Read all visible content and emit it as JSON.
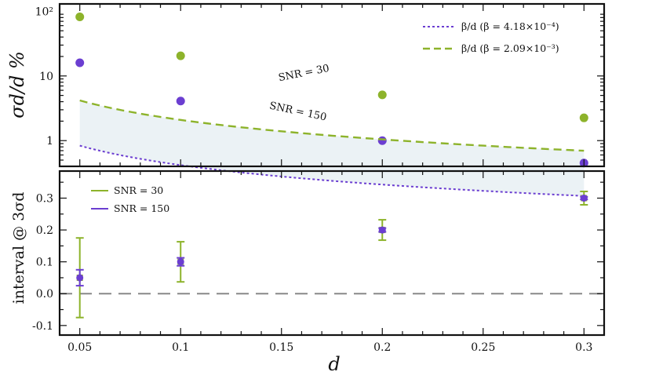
{
  "colors": {
    "green": "#8db32b",
    "purple": "#6b3ed1",
    "band": "#dde9ee",
    "zero_line": "#888888"
  },
  "chart_data": [
    {
      "type": "line",
      "ylabel": "σd/d %",
      "yscale": "log",
      "ylim": [
        0.4,
        130
      ],
      "xlim": [
        0.04,
        0.31
      ],
      "yticks": [
        {
          "value": 1,
          "label": "1"
        },
        {
          "value": 10,
          "label": "10"
        },
        {
          "value": 100,
          "label": "10²"
        }
      ],
      "band_between_curves": true,
      "legend_position": "top-right",
      "series": [
        {
          "name": "β/d  (β = 4.18×10⁻⁴)",
          "label": "SNR = 150",
          "color": "purple",
          "style": "dotted",
          "x": [
            0.05,
            0.1,
            0.2,
            0.3
          ],
          "y": [
            16,
            4.1,
            1.0,
            0.45
          ],
          "beta": 0.000418
        },
        {
          "name": "β/d  (β = 2.09×10⁻³)",
          "label": "SNR = 30",
          "color": "green",
          "style": "dashed",
          "x": [
            0.05,
            0.1,
            0.2,
            0.3
          ],
          "y": [
            82,
            20.5,
            5.1,
            2.25
          ],
          "beta": 0.00209
        }
      ]
    },
    {
      "type": "scatter",
      "xlabel": "d",
      "ylabel": "interval @ 3σd",
      "xlim": [
        0.04,
        0.31
      ],
      "ylim": [
        -0.13,
        0.385
      ],
      "xticks": [
        "0.05",
        "0.1",
        "0.15",
        "0.2",
        "0.25",
        "0.3"
      ],
      "yticks": [
        "-0.1",
        "0.0",
        "0.1",
        "0.2",
        "0.3"
      ],
      "hline": 0,
      "legend_position": "top-left",
      "series": [
        {
          "name": "SNR = 30",
          "color": "green",
          "x": [
            0.05,
            0.1,
            0.2,
            0.3
          ],
          "y": [
            0.05,
            0.1,
            0.2,
            0.3
          ],
          "err": [
            0.125,
            0.063,
            0.032,
            0.021
          ]
        },
        {
          "name": "SNR = 150",
          "color": "purple",
          "x": [
            0.05,
            0.1,
            0.2,
            0.3
          ],
          "y": [
            0.05,
            0.1,
            0.2,
            0.3
          ],
          "err": [
            0.025,
            0.0125,
            0.006,
            0.004
          ]
        }
      ]
    }
  ]
}
